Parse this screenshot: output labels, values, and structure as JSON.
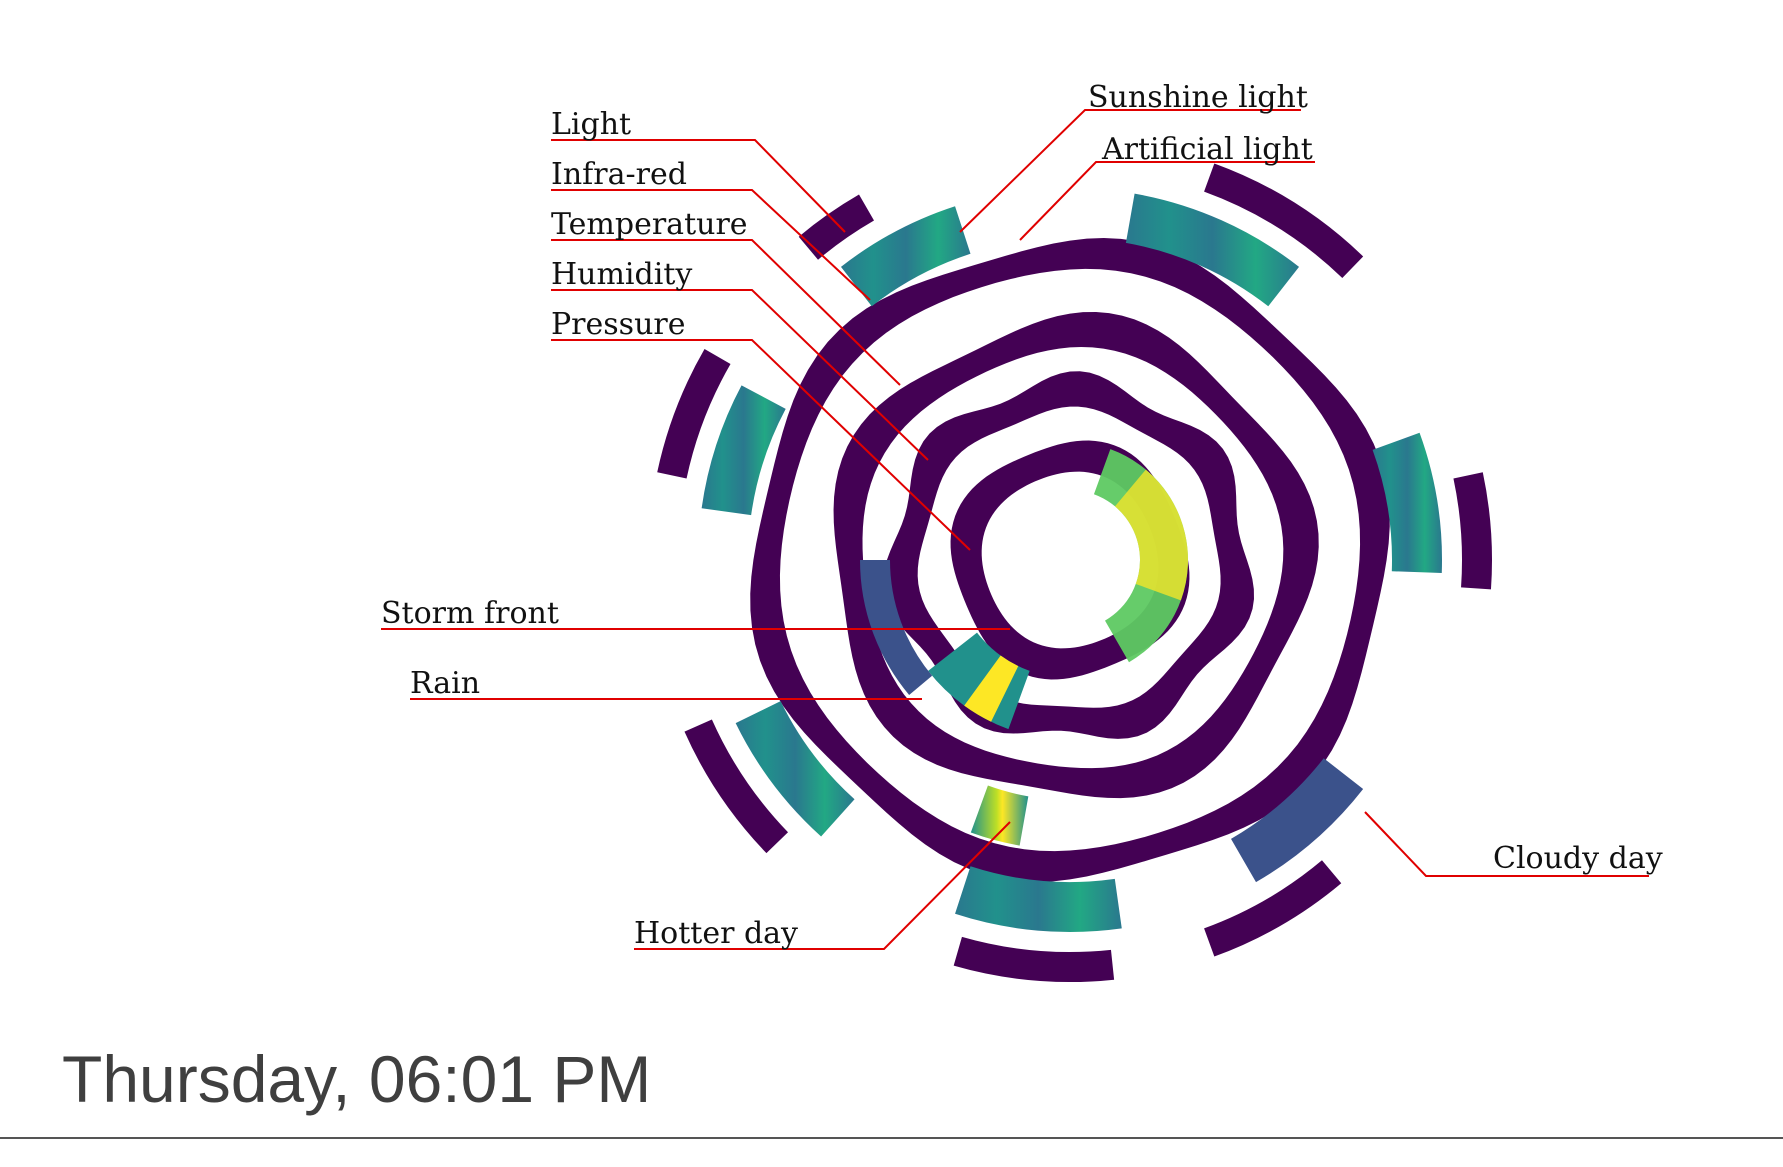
{
  "labels": {
    "light": "Light",
    "infrared": "Infra-red",
    "temperature": "Temperature",
    "humidity": "Humidity",
    "pressure": "Pressure",
    "storm_front": "Storm front",
    "rain": "Rain",
    "sunshine_light": "Sunshine light",
    "artificial_light": "Artificial light",
    "cloudy_day": "Cloudy day",
    "hotter_day": "Hotter day"
  },
  "footer": {
    "timestamp": "Thursday, 06:01 PM"
  },
  "colors": {
    "dark": "#440154",
    "indigo": "#3b528b",
    "teal": "#21918c",
    "green": "#5ec962",
    "yellow": "#fde725",
    "leader": "#e00000",
    "text": "#3f3f3f"
  }
}
